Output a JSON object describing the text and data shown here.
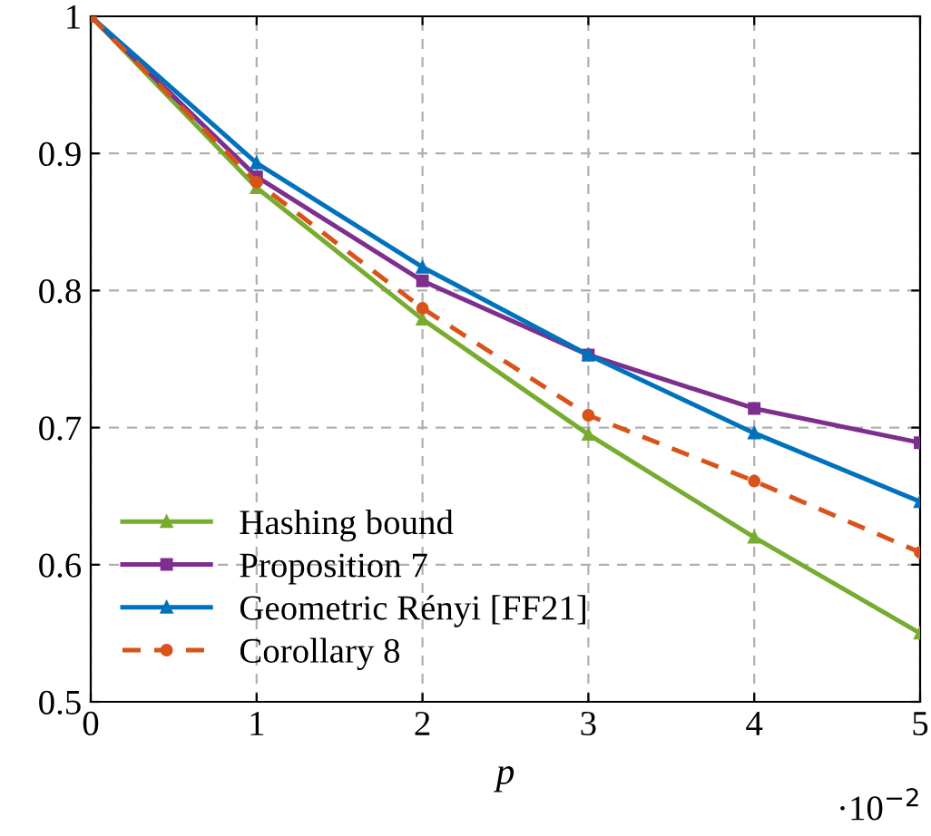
{
  "chart_data": {
    "type": "line",
    "xlabel": "p",
    "x": [
      0,
      1,
      2,
      3,
      4,
      5
    ],
    "xlim": [
      0,
      5
    ],
    "xticks": [
      0,
      1,
      2,
      3,
      4,
      5
    ],
    "ylim": [
      0.5,
      1
    ],
    "yticks": [
      0.5,
      0.6,
      0.7,
      0.8,
      0.9,
      1
    ],
    "grid": true,
    "legend": "bottom left",
    "series": [
      {
        "name": "Hashing bound",
        "color": "#77ac30",
        "marker": "triangle",
        "line_style": "solid",
        "values": [
          1,
          0.875,
          0.779,
          0.695,
          0.62,
          0.55
        ]
      },
      {
        "name": "Proposition 7",
        "color": "#7e2f8e",
        "marker": "square",
        "line_style": "solid",
        "values": [
          1,
          0.883,
          0.807,
          0.753,
          0.714,
          0.689
        ]
      },
      {
        "name": "Geometric Rényi [FF21]",
        "color": "#0072bd",
        "marker": "triangle",
        "line_style": "solid",
        "values": [
          1,
          0.893,
          0.817,
          0.753,
          0.696,
          0.646
        ]
      },
      {
        "name": "Corollary 8",
        "color": "#d95319",
        "marker": "circle",
        "line_style": "dashed",
        "values": [
          1,
          0.879,
          0.787,
          0.709,
          0.661,
          0.609
        ]
      }
    ],
    "annotations": [
      "·10$^{−2}$"
    ]
  }
}
